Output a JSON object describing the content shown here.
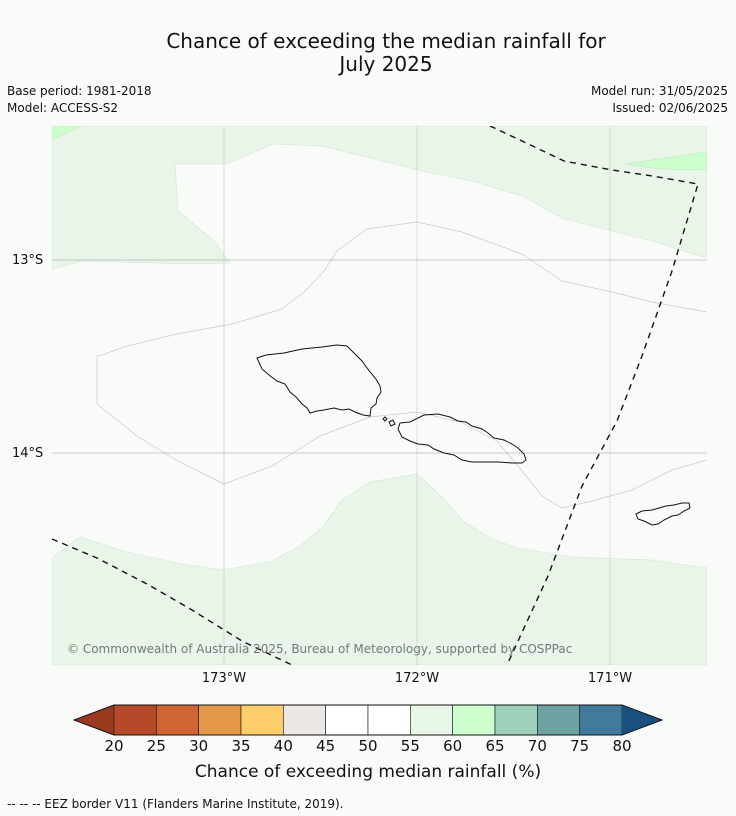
{
  "title_line1": "Chance of exceeding the median rainfall for",
  "title_line2": "July 2025",
  "base_period": "Base period: 1981-2018",
  "model": "Model: ACCESS-S2",
  "model_run": "Model run: 31/05/2025",
  "issued": "Issued: 02/06/2025",
  "map": {
    "lat_labels": [
      "13°S",
      "14°S"
    ],
    "lon_labels": [
      "173°W",
      "172°W",
      "171°W"
    ],
    "copyright": "© Commonwealth of Australia 2025, Bureau of Meteorology, supported by COSPPac"
  },
  "colorbar": {
    "ticks": [
      "20",
      "25",
      "30",
      "35",
      "40",
      "45",
      "50",
      "55",
      "60",
      "65",
      "70",
      "75",
      "80"
    ],
    "colors": [
      "#9c3a20",
      "#b5492a",
      "#d06633",
      "#e39948",
      "#fdcd6b",
      "#ebe8e3",
      "#ffffff",
      "#ffffff",
      "#e8f6e8",
      "#ccffcc",
      "#9ecfb9",
      "#6ea3a4",
      "#417a9c",
      "#1a4f7f"
    ],
    "label": "Chance of exceeding median rainfall (%)"
  },
  "footnote": "--  --  -- EEZ border V11 (Flanders Marine Institute, 2019)."
}
